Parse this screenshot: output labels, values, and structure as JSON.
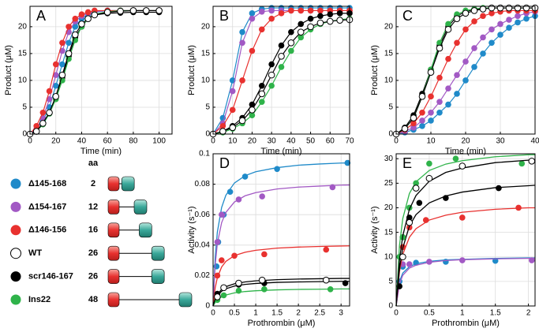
{
  "chart_data": [
    {
      "type": "line",
      "label": "A",
      "xlabel": "Time (min)",
      "ylabel": "Product (μM)",
      "xlim": [
        0,
        110
      ],
      "ylim": [
        0,
        23.8
      ],
      "xticks": [
        0,
        20,
        40,
        60,
        80,
        100
      ],
      "yticks": [
        0,
        5,
        10,
        15,
        20
      ],
      "grid": true,
      "x": [
        0,
        5,
        10,
        15,
        20,
        25,
        30,
        35,
        40,
        45,
        50,
        60,
        70,
        80,
        90,
        100
      ],
      "series": [
        {
          "values": [
            0,
            0.8,
            2.5,
            5,
            9,
            13,
            17,
            20,
            21.5,
            22.3,
            22.7,
            23,
            23,
            23,
            23,
            23
          ]
        },
        {
          "values": [
            0,
            1,
            3,
            6.5,
            11,
            15.5,
            19,
            21,
            22,
            22.5,
            22.8,
            23,
            23,
            23,
            23,
            23
          ]
        },
        {
          "values": [
            0,
            1.5,
            4,
            8,
            13,
            17,
            20,
            21.5,
            22.3,
            22.7,
            23,
            23,
            23,
            23,
            23,
            23
          ]
        },
        {
          "values": [
            0,
            0.5,
            2,
            4,
            7,
            11,
            15,
            18.5,
            20.5,
            21.5,
            22.2,
            22.7,
            22.9,
            23,
            23,
            23
          ]
        },
        {
          "values": [
            0,
            0.5,
            2,
            4,
            7,
            10.5,
            14.5,
            18,
            20,
            21.5,
            22.2,
            22.5,
            22.6,
            22.7,
            22.7,
            22.7
          ]
        },
        {
          "values": [
            0,
            0.5,
            1.8,
            3.8,
            6.5,
            10,
            14,
            17.5,
            20,
            21.5,
            22.3,
            22.8,
            23,
            23,
            23,
            23
          ]
        }
      ]
    },
    {
      "type": "line",
      "label": "B",
      "xlabel": "Time (min)",
      "ylabel": "Product (μM)",
      "xlim": [
        0,
        70
      ],
      "ylim": [
        0,
        23.8
      ],
      "xticks": [
        0,
        10,
        20,
        30,
        40,
        50,
        60,
        70
      ],
      "yticks": [
        0,
        5,
        10,
        15,
        20
      ],
      "grid": true,
      "x": [
        0,
        5,
        10,
        15,
        20,
        25,
        30,
        35,
        40,
        45,
        50,
        55,
        60,
        65,
        70
      ],
      "series": [
        {
          "values": [
            0,
            3,
            10,
            19,
            22.5,
            23.3,
            23.5,
            23.5,
            23.5,
            23.5,
            23.5,
            23.5,
            23.5,
            23.5,
            23.5
          ]
        },
        {
          "values": [
            0,
            2,
            8,
            17,
            21.5,
            22.8,
            23,
            23,
            23,
            23,
            23,
            23,
            23,
            23,
            23
          ]
        },
        {
          "values": [
            0,
            1.5,
            4.5,
            10,
            15.5,
            19.5,
            21.5,
            22.5,
            23,
            23,
            23,
            23,
            23,
            23,
            23
          ]
        },
        {
          "values": [
            0,
            0.5,
            1.2,
            2.5,
            4.5,
            7.5,
            11,
            14.5,
            17,
            19,
            20,
            20.7,
            21,
            21.2,
            21.3
          ]
        },
        {
          "values": [
            0,
            0.5,
            1.5,
            3,
            5.5,
            9,
            13,
            16.5,
            19,
            20.5,
            21.5,
            22,
            22.3,
            22.5,
            22.5
          ]
        },
        {
          "values": [
            0,
            0.3,
            1,
            2,
            3.5,
            6,
            9,
            12.5,
            15.5,
            18,
            19.5,
            20.5,
            21,
            21.3,
            21.5
          ]
        }
      ]
    },
    {
      "type": "line",
      "label": "C",
      "xlabel": "Time (min)",
      "ylabel": "Product (μM)",
      "xlim": [
        0,
        40
      ],
      "ylim": [
        0,
        23.8
      ],
      "xticks": [
        0,
        10,
        20,
        30,
        40
      ],
      "yticks": [
        0,
        5,
        10,
        15,
        20
      ],
      "grid": true,
      "x": [
        0,
        2.5,
        5,
        7.5,
        10,
        12.5,
        15,
        17.5,
        20,
        22.5,
        25,
        27.5,
        30,
        32.5,
        35,
        37.5,
        40
      ],
      "series": [
        {
          "values": [
            0,
            0.3,
            0.8,
            1.5,
            2.5,
            4,
            5.5,
            7.5,
            10,
            12.5,
            15,
            17,
            18.5,
            19.8,
            20.8,
            21.5,
            22
          ]
        },
        {
          "values": [
            0,
            0.5,
            1.2,
            2.5,
            4,
            6,
            8.5,
            11,
            13.5,
            16,
            18,
            19.5,
            20.5,
            21.3,
            22,
            22.5,
            22.8
          ]
        },
        {
          "values": [
            0,
            0.8,
            2,
            4,
            7,
            10.5,
            14,
            17,
            19.5,
            21,
            22,
            22.5,
            22.8,
            23,
            23,
            23,
            23
          ]
        },
        {
          "values": [
            0,
            1,
            3,
            7,
            11.5,
            16,
            19.5,
            21.5,
            22.5,
            23,
            23.3,
            23.5,
            23.5,
            23.5,
            23.5,
            23.5,
            23.5
          ]
        },
        {
          "values": [
            0,
            1.2,
            3.5,
            7.5,
            12,
            16.5,
            20,
            22,
            22.8,
            23.2,
            23.4,
            23.5,
            23.5,
            23.5,
            23.5,
            23.5,
            23.5
          ]
        },
        {
          "values": [
            0,
            1,
            3,
            7,
            12,
            17,
            20.5,
            22.3,
            23,
            23.3,
            23.5,
            23.5,
            23.5,
            23.5,
            23.5,
            23.5,
            23.5
          ]
        }
      ]
    },
    {
      "type": "scatter",
      "label": "D",
      "xlabel": "Prothrombin (μM)",
      "ylabel": "Activity (s⁻¹)",
      "xlim": [
        0,
        3.2
      ],
      "ylim": [
        0,
        0.1
      ],
      "xticks": [
        0,
        0.5,
        1,
        1.5,
        2,
        2.5,
        3
      ],
      "yticks": [
        0,
        0.02,
        0.04,
        0.06,
        0.08,
        0.1
      ],
      "grid": true,
      "fit_x": [
        0,
        0.05,
        0.1,
        0.2,
        0.3,
        0.5,
        0.75,
        1,
        1.5,
        2,
        2.5,
        3,
        3.2
      ],
      "series": [
        {
          "x": [
            0.08,
            0.12,
            0.25,
            0.4,
            0.75,
            1.5,
            3.15
          ],
          "values": [
            0.026,
            0.042,
            0.06,
            0.075,
            0.085,
            0.09,
            0.094
          ],
          "fit": [
            0,
            0.032,
            0.0485,
            0.0647,
            0.0728,
            0.0808,
            0.0856,
            0.0882,
            0.0909,
            0.0925,
            0.0933,
            0.0939,
            0.094
          ]
        },
        {
          "x": [
            0.1,
            0.2,
            0.6,
            1.15,
            2.8
          ],
          "values": [
            0.042,
            0.06,
            0.07,
            0.072,
            0.078
          ],
          "fit": [
            0,
            0.027,
            0.041,
            0.0547,
            0.0615,
            0.0683,
            0.0724,
            0.0745,
            0.0769,
            0.0781,
            0.0788,
            0.0794,
            0.0795
          ]
        },
        {
          "x": [
            0.1,
            0.2,
            0.5,
            1.2,
            2.65
          ],
          "values": [
            0.02,
            0.03,
            0.033,
            0.034,
            0.037
          ],
          "fit": [
            0,
            0.012,
            0.0186,
            0.0256,
            0.0293,
            0.0331,
            0.0353,
            0.0366,
            0.038,
            0.0387,
            0.0391,
            0.0394,
            0.0395
          ]
        },
        {
          "x": [
            0.1,
            0.25,
            0.6,
            1.15,
            2.65
          ],
          "values": [
            0.006,
            0.012,
            0.015,
            0.017,
            0.017
          ],
          "fit": [
            0,
            0.0048,
            0.0076,
            0.0109,
            0.0127,
            0.0146,
            0.0158,
            0.0165,
            0.0173,
            0.0177,
            0.0179,
            0.0181,
            0.0181
          ]
        },
        {
          "x": [
            0.1,
            0.25,
            0.6,
            1.2,
            3.1
          ],
          "values": [
            0.008,
            0.012,
            0.014,
            0.015,
            0.015
          ],
          "fit": [
            0,
            0.0043,
            0.0068,
            0.0097,
            0.0113,
            0.0131,
            0.0142,
            0.0148,
            0.0155,
            0.0158,
            0.016,
            0.0162,
            0.0162
          ]
        },
        {
          "x": [
            0.1,
            0.25,
            0.6,
            1.2,
            2.75
          ],
          "values": [
            0.004,
            0.007,
            0.01,
            0.011,
            0.011
          ],
          "fit": [
            0,
            0.0024,
            0.004,
            0.006,
            0.0072,
            0.0086,
            0.0095,
            0.01,
            0.0106,
            0.0109,
            0.011,
            0.0112,
            0.0112
          ]
        }
      ]
    },
    {
      "type": "scatter",
      "label": "E",
      "xlabel": "Prothrombin (μM)",
      "ylabel": "Activity (s⁻¹)",
      "xlim": [
        0,
        2.1
      ],
      "ylim": [
        0,
        31
      ],
      "xticks": [
        0,
        0.5,
        1,
        1.5,
        2
      ],
      "yticks": [
        0,
        5,
        10,
        15,
        20,
        25,
        30
      ],
      "grid": true,
      "fit_x": [
        0,
        0.05,
        0.1,
        0.2,
        0.3,
        0.5,
        0.75,
        1,
        1.5,
        2,
        2.1
      ],
      "series": [
        {
          "x": [
            0.05,
            0.1,
            0.3,
            0.75,
            1.5
          ],
          "values": [
            5,
            8,
            8.8,
            9,
            9.2
          ],
          "fit": [
            0,
            5,
            6.7,
            8,
            8.6,
            9.1,
            9.4,
            9.5,
            9.7,
            9.8,
            9.8
          ]
        },
        {
          "x": [
            0.1,
            0.2,
            0.5,
            1,
            2.05
          ],
          "values": [
            8.5,
            8.5,
            9,
            9.3,
            9.3
          ],
          "fit": [
            0,
            4.5,
            6.25,
            7.7,
            8.3,
            8.9,
            9.26,
            9.43,
            9.6,
            9.7,
            9.72
          ]
        },
        {
          "x": [
            0.1,
            0.2,
            0.45,
            1,
            1.85
          ],
          "values": [
            12,
            16,
            17.5,
            18,
            20
          ],
          "fit": [
            0,
            7,
            10.5,
            14,
            15.75,
            17.5,
            18.5,
            19.1,
            19.7,
            20,
            20
          ]
        },
        {
          "x": [
            0.1,
            0.2,
            0.3,
            0.5,
            1,
            2.05
          ],
          "values": [
            10,
            17,
            24,
            26,
            28.5,
            29.5
          ],
          "fit": [
            0,
            9.3,
            14.3,
            19.7,
            22.5,
            25.4,
            27.2,
            28.1,
            29.2,
            29.7,
            29.8
          ]
        },
        {
          "x": [
            0.05,
            0.1,
            0.2,
            0.35,
            0.75,
            1.55
          ],
          "values": [
            4,
            14,
            18,
            21,
            22,
            24
          ],
          "fit": [
            0,
            7.6,
            11.8,
            16.3,
            18.6,
            21,
            22.4,
            23.2,
            24.1,
            24.5,
            24.6
          ]
        },
        {
          "x": [
            0.05,
            0.1,
            0.2,
            0.3,
            0.5,
            0.9,
            1.9
          ],
          "values": [
            10,
            14,
            20,
            25,
            29,
            30,
            29
          ],
          "fit": [
            0,
            12.3,
            17.8,
            22.9,
            25.3,
            27.6,
            28.9,
            29.6,
            30.4,
            30.8,
            30.8
          ]
        }
      ]
    }
  ],
  "legend": {
    "header": "aa",
    "entries": [
      {
        "name": "Δ145-168",
        "aa": 2,
        "color": "#1f8ac9",
        "filled": true
      },
      {
        "name": "Δ154-167",
        "aa": 12,
        "color": "#a259c4",
        "filled": true
      },
      {
        "name": "Δ146-156",
        "aa": 16,
        "color": "#e8312f",
        "filled": true
      },
      {
        "name": "WT",
        "aa": 26,
        "color": "#000000",
        "filled": false
      },
      {
        "name": "scr146-167",
        "aa": 26,
        "color": "#000000",
        "filled": true
      },
      {
        "name": "Ins22",
        "aa": 48,
        "color": "#2fb34a",
        "filled": true
      }
    ]
  }
}
